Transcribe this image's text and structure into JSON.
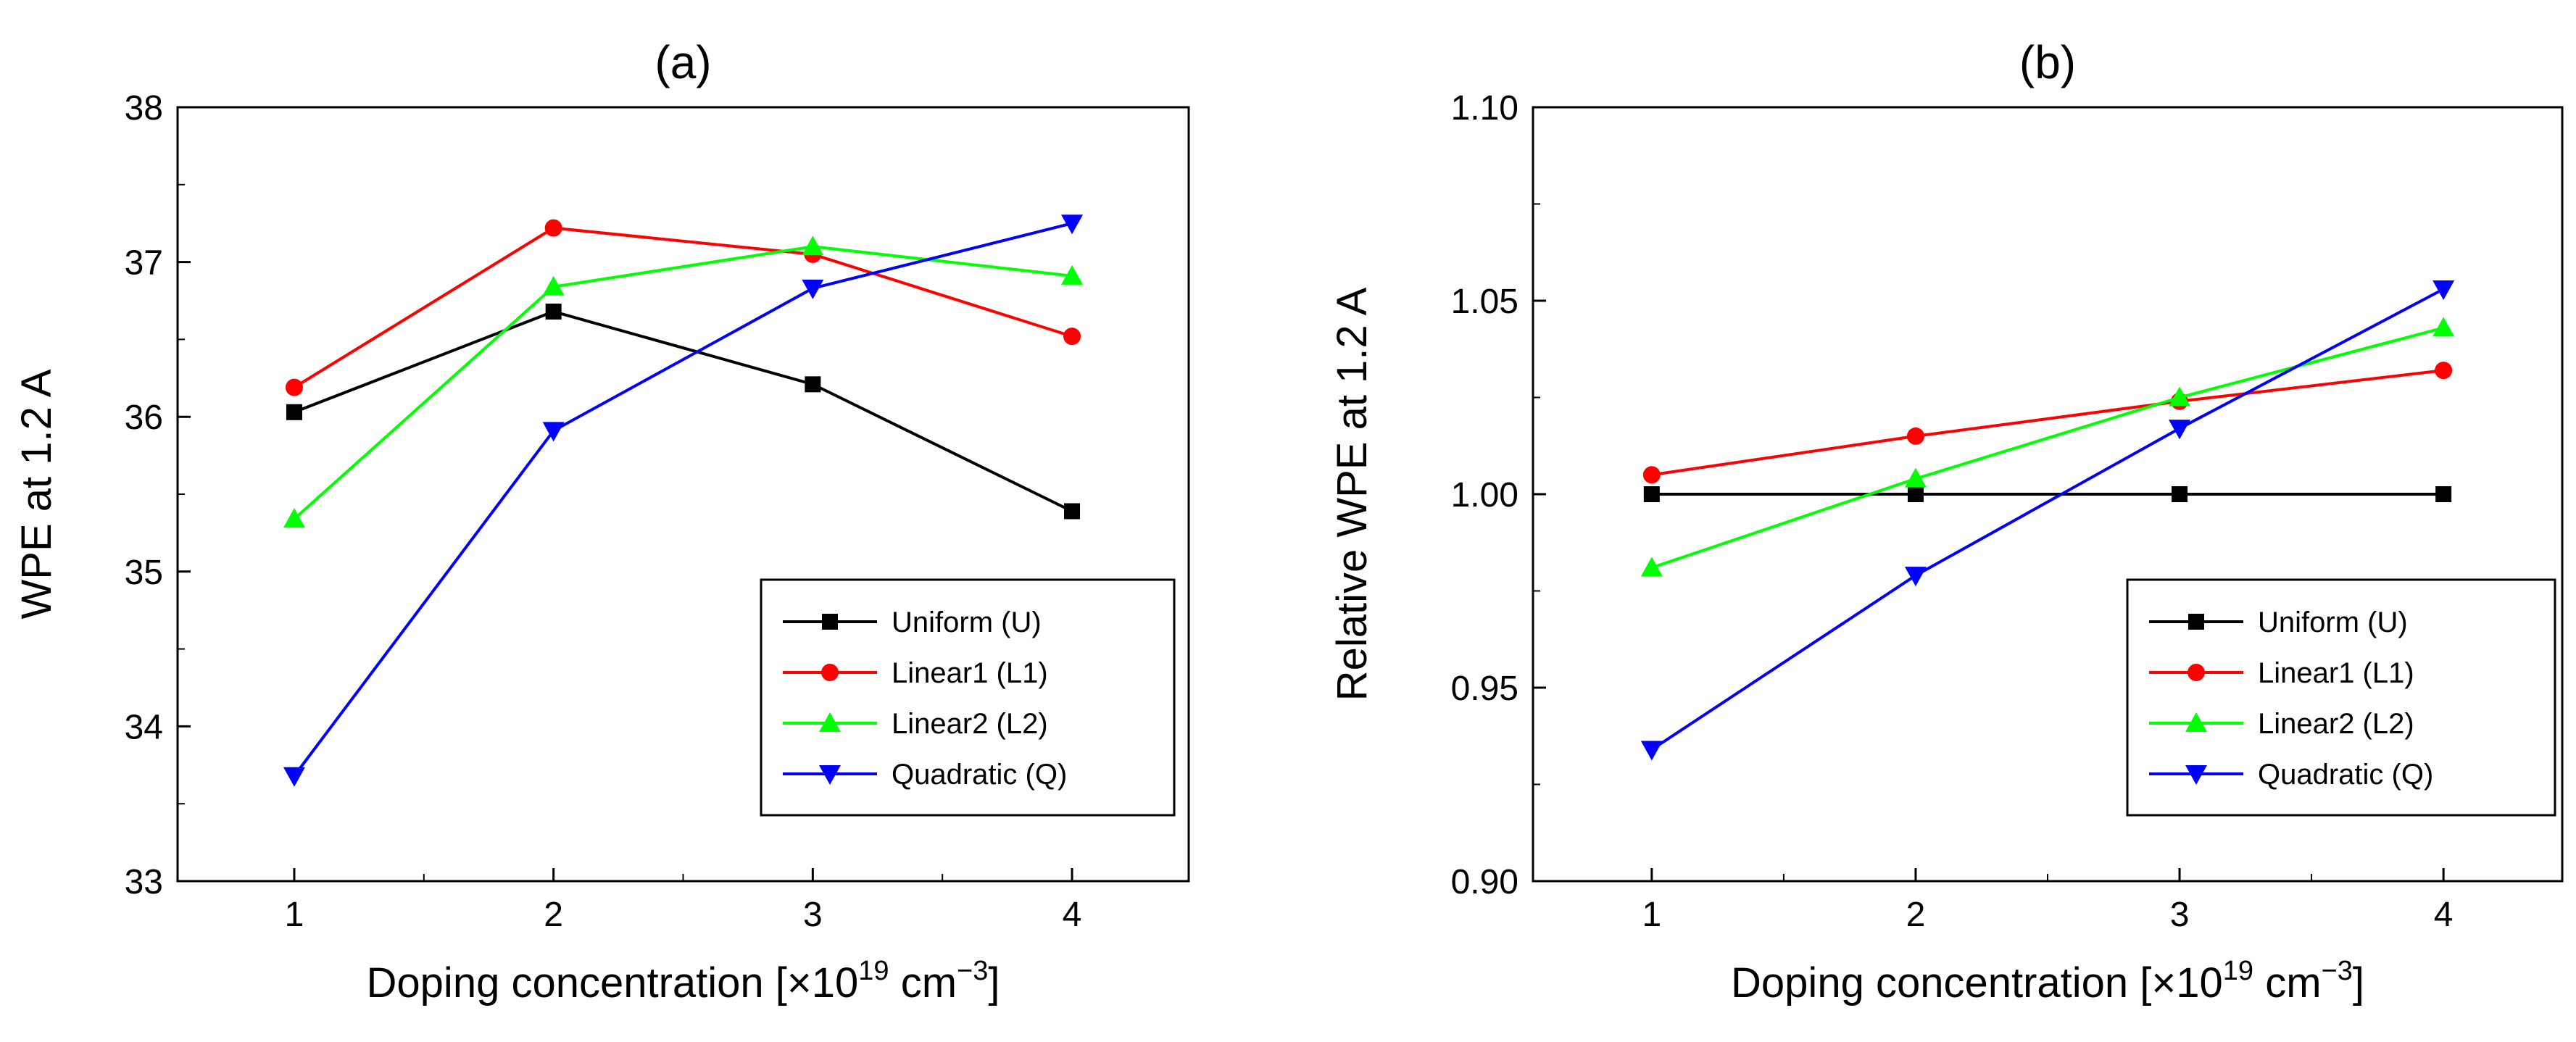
{
  "chart_data": [
    {
      "type": "line",
      "title": "(a)",
      "xlabel": {
        "main": "Doping concentration [×10",
        "sup1": "19",
        "mid": " cm",
        "sup2": "−3",
        "end": "]"
      },
      "ylabel": "WPE at 1.2 A",
      "x": [
        1,
        2,
        3,
        4
      ],
      "xlim": [
        0.55,
        4.45
      ],
      "ylim": [
        33,
        38
      ],
      "xticks": [
        "1",
        "2",
        "3",
        "4"
      ],
      "yticks": [
        "33",
        "34",
        "35",
        "36",
        "37",
        "38"
      ],
      "legend_position": "lower-right",
      "series": [
        {
          "name": "Uniform (U)",
          "color": "#000000",
          "marker": "square",
          "values": [
            36.03,
            36.68,
            36.21,
            35.39
          ]
        },
        {
          "name": "Linear1 (L1)",
          "color": "#ff0000",
          "marker": "circle",
          "values": [
            36.19,
            37.22,
            37.05,
            36.52
          ]
        },
        {
          "name": "Linear2 (L2)",
          "color": "#00ff00",
          "marker": "triangle-up",
          "values": [
            35.34,
            36.84,
            37.1,
            36.91
          ]
        },
        {
          "name": "Quadratic (Q)",
          "color": "#0000ff",
          "marker": "triangle-down",
          "values": [
            33.68,
            35.91,
            36.83,
            37.25
          ]
        }
      ]
    },
    {
      "type": "line",
      "title": "(b)",
      "xlabel": {
        "main": "Doping concentration [×10",
        "sup1": "19",
        "mid": " cm",
        "sup2": "−3",
        "end": "]"
      },
      "ylabel": "Relative WPE at 1.2 A",
      "x": [
        1,
        2,
        3,
        4
      ],
      "xlim": [
        0.55,
        4.45
      ],
      "ylim": [
        0.9,
        1.1
      ],
      "xticks": [
        "1",
        "2",
        "3",
        "4"
      ],
      "yticks": [
        "0.90",
        "0.95",
        "1.00",
        "1.05",
        "1.10"
      ],
      "legend_position": "lower-right",
      "series": [
        {
          "name": "Uniform (U)",
          "color": "#000000",
          "marker": "square",
          "values": [
            1.0,
            1.0,
            1.0,
            1.0
          ]
        },
        {
          "name": "Linear1 (L1)",
          "color": "#ff0000",
          "marker": "circle",
          "values": [
            1.005,
            1.015,
            1.024,
            1.032
          ]
        },
        {
          "name": "Linear2 (L2)",
          "color": "#00ff00",
          "marker": "triangle-up",
          "values": [
            0.981,
            1.004,
            1.025,
            1.043
          ]
        },
        {
          "name": "Quadratic (Q)",
          "color": "#0000ff",
          "marker": "triangle-down",
          "values": [
            0.934,
            0.979,
            1.017,
            1.053
          ]
        }
      ]
    }
  ]
}
